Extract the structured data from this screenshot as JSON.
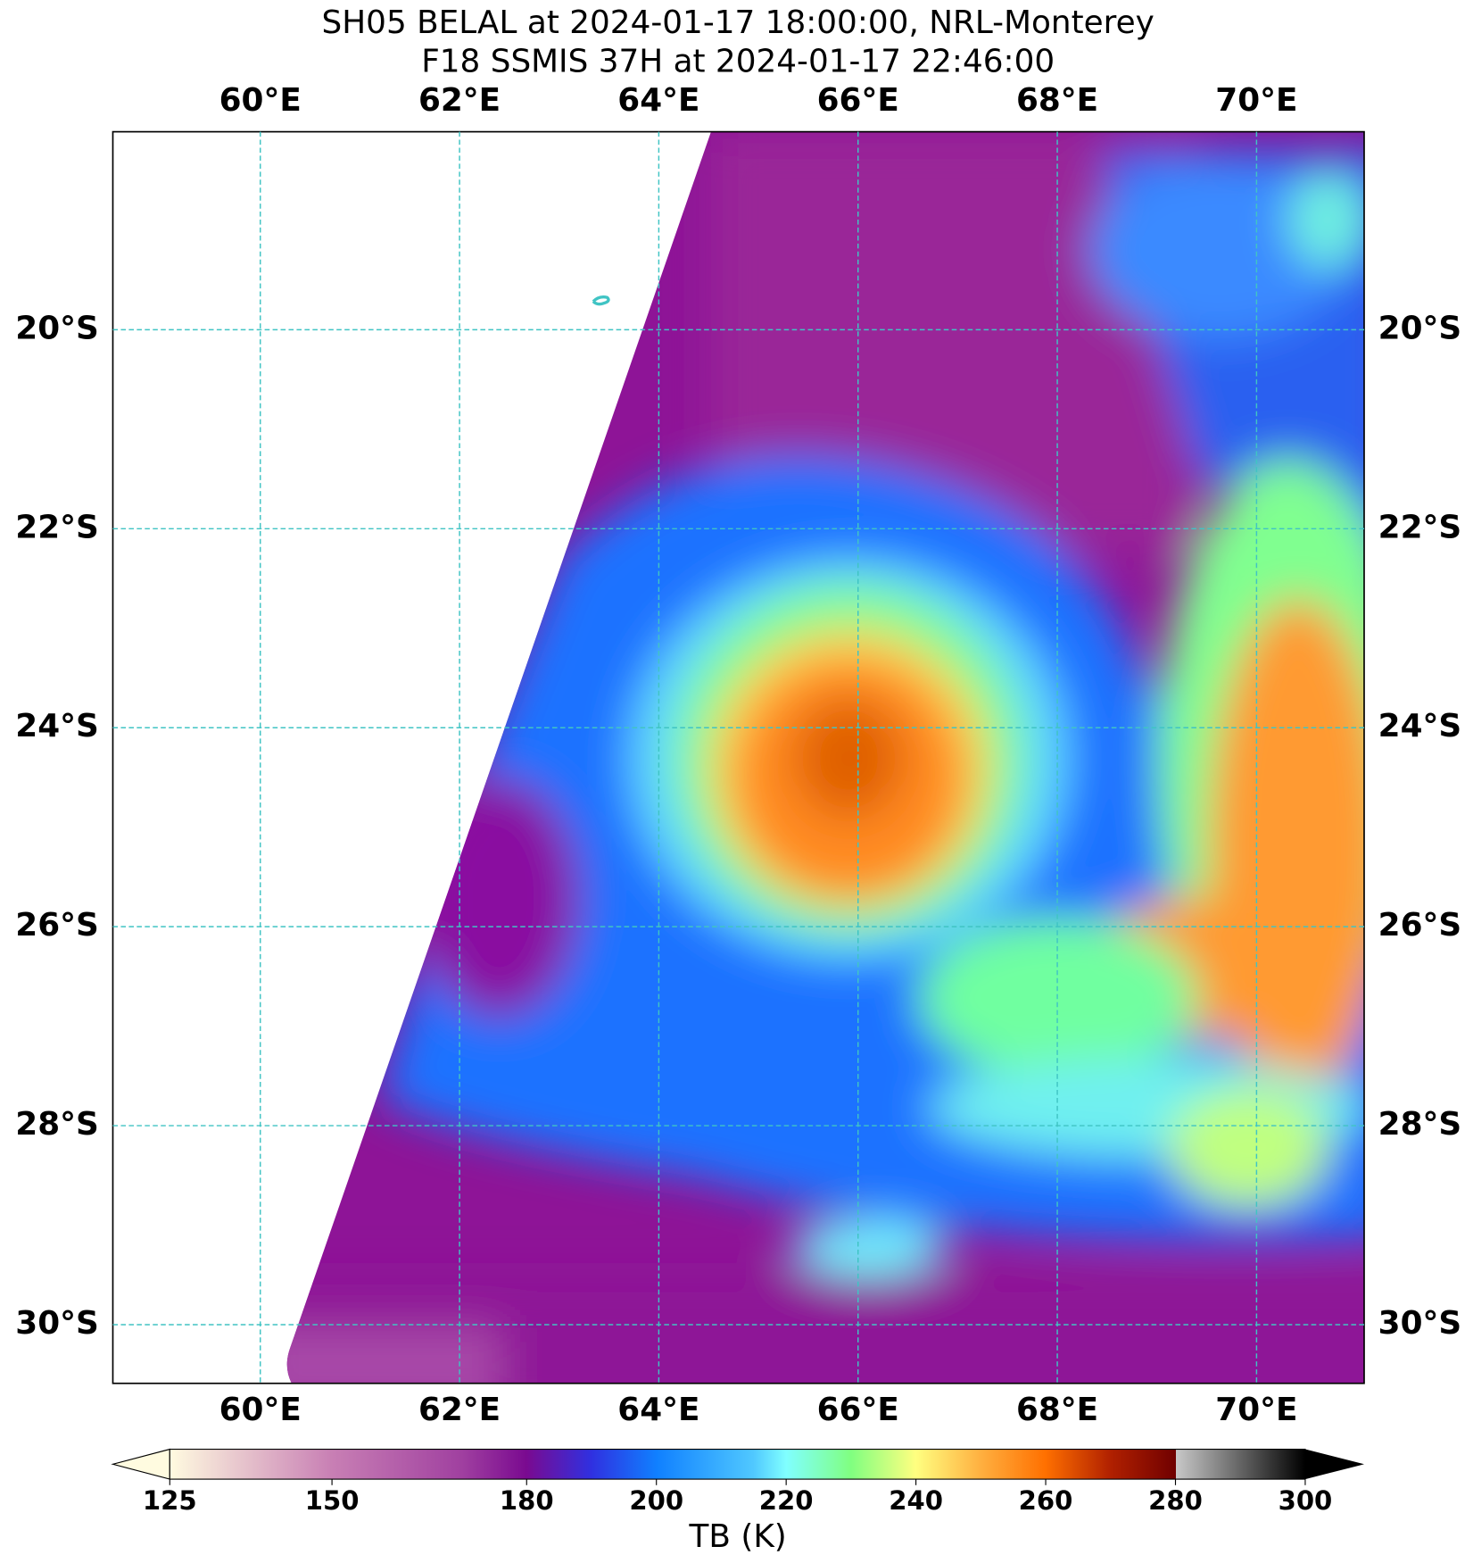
{
  "map": {
    "title": [
      "SH05 BELAL at 2024-01-17 18:00:00, NRL-Monterey",
      "F18 SSMIS 37H at 2024-01-17 22:46:00"
    ],
    "xlim": [
      58.52,
      71.08
    ],
    "ylim": [
      -30.59,
      -18.01
    ],
    "xticks": [
      {
        "value": 60,
        "label": "60°E"
      },
      {
        "value": 62,
        "label": "62°E"
      },
      {
        "value": 64,
        "label": "64°E"
      },
      {
        "value": 66,
        "label": "66°E"
      },
      {
        "value": 68,
        "label": "68°E"
      },
      {
        "value": 70,
        "label": "70°E"
      }
    ],
    "yticks": [
      {
        "value": -20,
        "label": "20°S"
      },
      {
        "value": -22,
        "label": "22°S"
      },
      {
        "value": -24,
        "label": "24°S"
      },
      {
        "value": -26,
        "label": "26°S"
      },
      {
        "value": -28,
        "label": "28°S"
      },
      {
        "value": -30,
        "label": "30°S"
      }
    ],
    "colorbar": {
      "label": "TB (K)",
      "lim": [
        125,
        300
      ],
      "ticks": [
        125,
        150,
        180,
        200,
        220,
        240,
        260,
        280,
        300
      ]
    }
  }
}
